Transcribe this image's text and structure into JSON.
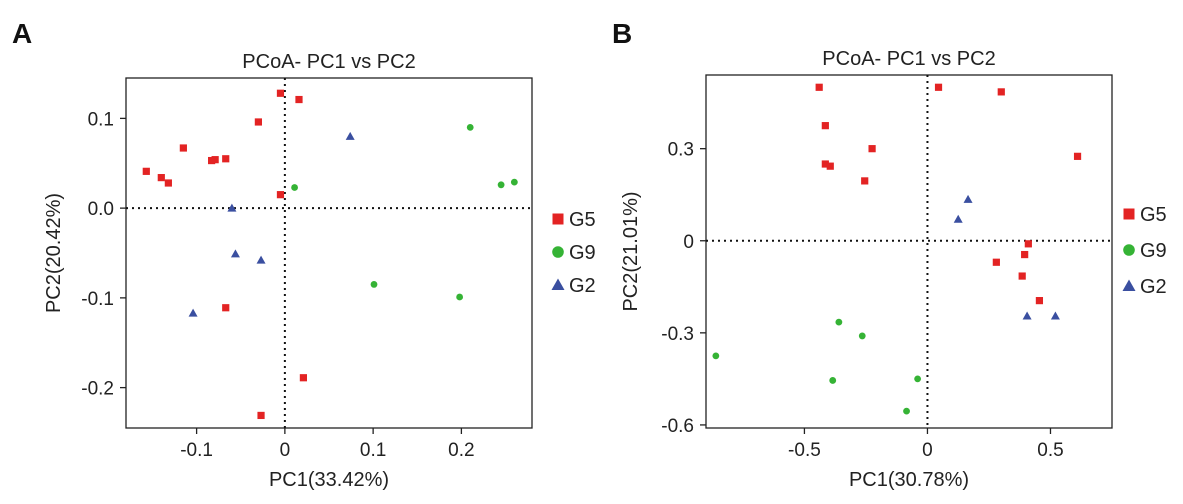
{
  "chart_data": [
    {
      "panel_label": "A",
      "type": "scatter",
      "title": "PCoA- PC1 vs PC2",
      "xlabel": "PC1(33.42%)",
      "ylabel": "PC2(20.42%)",
      "xlim": [
        -0.18,
        0.28
      ],
      "ylim": [
        -0.245,
        0.145
      ],
      "xticks": [
        -0.1,
        0,
        0.1,
        0.2
      ],
      "xtick_labels": [
        "-0.1",
        "0",
        "0.1",
        "0.2"
      ],
      "yticks": [
        0.1,
        0.0,
        -0.1,
        -0.2
      ],
      "ytick_labels": [
        "0.1",
        "0.0",
        "-0.1",
        "-0.2"
      ],
      "reference_lines": {
        "x": 0,
        "y": 0
      },
      "legend": {
        "position": "right"
      },
      "series": [
        {
          "name": "G5",
          "marker": "square",
          "color": "#e32323",
          "points": [
            [
              -0.157,
              0.041
            ],
            [
              -0.14,
              0.034
            ],
            [
              -0.132,
              0.028
            ],
            [
              -0.115,
              0.067
            ],
            [
              -0.083,
              0.053
            ],
            [
              -0.079,
              0.054
            ],
            [
              -0.067,
              0.055
            ],
            [
              -0.03,
              0.096
            ],
            [
              -0.005,
              0.128
            ],
            [
              0.016,
              0.121
            ],
            [
              -0.005,
              0.015
            ],
            [
              -0.067,
              -0.111
            ],
            [
              0.021,
              -0.189
            ],
            [
              -0.027,
              -0.231
            ]
          ]
        },
        {
          "name": "G9",
          "marker": "circle",
          "color": "#35b335",
          "points": [
            [
              0.011,
              0.023
            ],
            [
              0.21,
              0.09
            ],
            [
              0.245,
              0.026
            ],
            [
              0.26,
              0.029
            ],
            [
              0.101,
              -0.085
            ],
            [
              0.198,
              -0.099
            ]
          ]
        },
        {
          "name": "G2",
          "marker": "triangle",
          "color": "#3a4fa0",
          "points": [
            [
              0.074,
              0.08
            ],
            [
              -0.06,
              0.0
            ],
            [
              -0.056,
              -0.051
            ],
            [
              -0.027,
              -0.058
            ],
            [
              -0.104,
              -0.117
            ]
          ]
        }
      ]
    },
    {
      "panel_label": "B",
      "type": "scatter",
      "title": "PCoA- PC1 vs PC2",
      "xlabel": "PC1(30.78%)",
      "ylabel": "PC2(21.01%)",
      "xlim": [
        -0.9,
        0.75
      ],
      "ylim": [
        -0.61,
        0.54
      ],
      "xticks": [
        -0.5,
        0,
        0.5
      ],
      "xtick_labels": [
        "-0.5",
        "0",
        "0.5"
      ],
      "yticks": [
        0.3,
        0,
        -0.3,
        -0.6
      ],
      "ytick_labels": [
        "0.3",
        "0",
        "-0.3",
        "-0.6"
      ],
      "reference_lines": {
        "x": 0,
        "y": 0
      },
      "legend": {
        "position": "right"
      },
      "series": [
        {
          "name": "G5",
          "marker": "square",
          "color": "#e32323",
          "points": [
            [
              -0.44,
              0.5
            ],
            [
              -0.415,
              0.375
            ],
            [
              -0.415,
              0.25
            ],
            [
              -0.395,
              0.243
            ],
            [
              -0.225,
              0.3
            ],
            [
              -0.255,
              0.195
            ],
            [
              0.045,
              0.5
            ],
            [
              0.3,
              0.485
            ],
            [
              0.61,
              0.275
            ],
            [
              0.28,
              -0.07
            ],
            [
              0.395,
              -0.045
            ],
            [
              0.41,
              -0.01
            ],
            [
              0.385,
              -0.115
            ],
            [
              0.455,
              -0.195
            ]
          ]
        },
        {
          "name": "G9",
          "marker": "circle",
          "color": "#35b335",
          "points": [
            [
              -0.86,
              -0.375
            ],
            [
              -0.36,
              -0.265
            ],
            [
              -0.265,
              -0.31
            ],
            [
              -0.385,
              -0.455
            ],
            [
              -0.04,
              -0.45
            ],
            [
              -0.085,
              -0.555
            ]
          ]
        },
        {
          "name": "G2",
          "marker": "triangle",
          "color": "#3a4fa0",
          "points": [
            [
              0.165,
              0.135
            ],
            [
              0.125,
              0.07
            ],
            [
              0.405,
              -0.245
            ],
            [
              0.52,
              -0.245
            ]
          ]
        }
      ]
    }
  ]
}
